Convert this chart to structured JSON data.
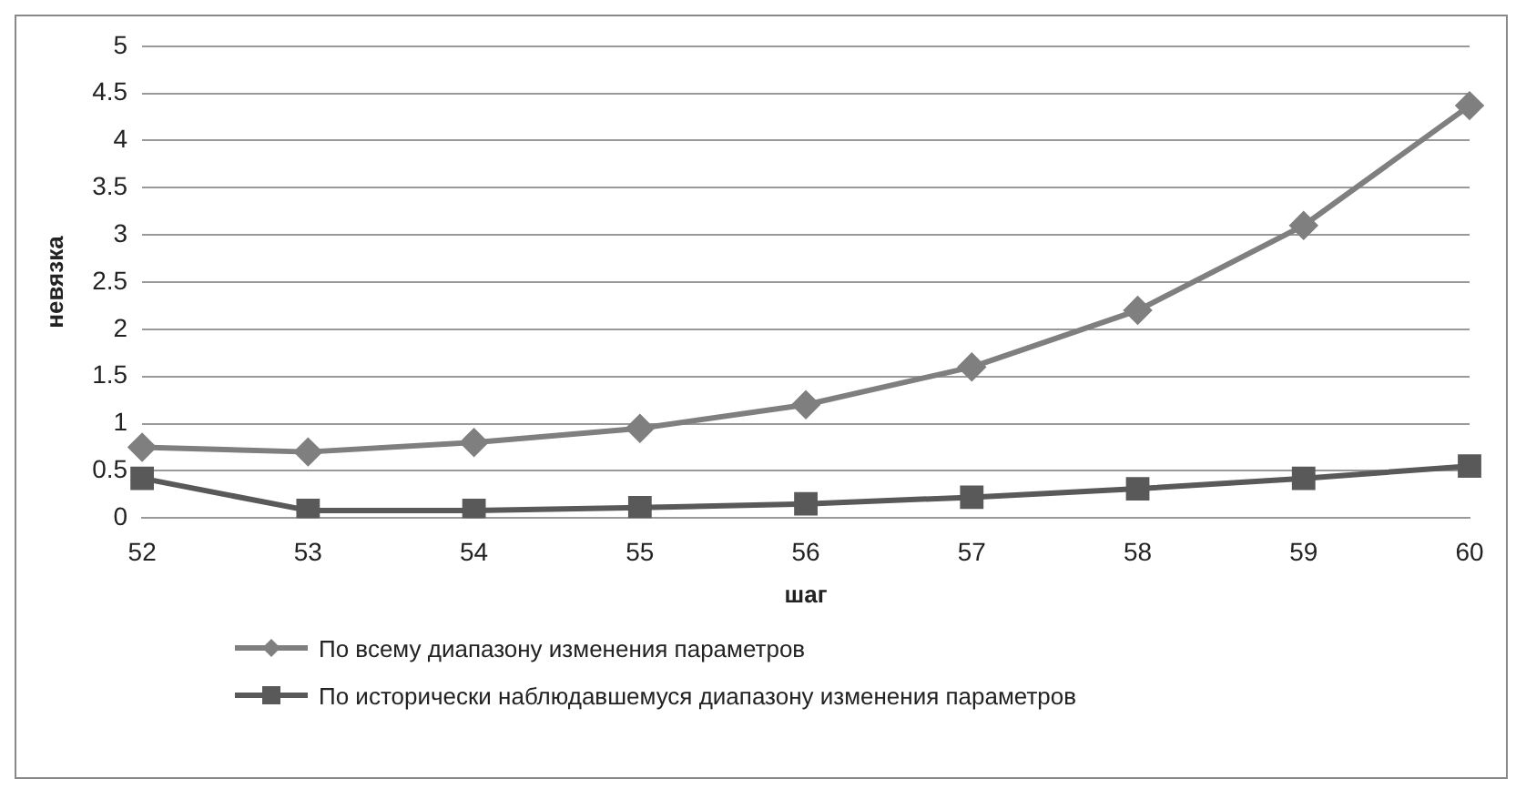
{
  "chart_data": {
    "type": "line",
    "xlabel": "шаг",
    "ylabel": "невязка",
    "categories": [
      "52",
      "53",
      "54",
      "55",
      "56",
      "57",
      "58",
      "59",
      "60"
    ],
    "series": [
      {
        "name": "По всему диапазону изменения параметров",
        "color": "#7f7f7f",
        "marker": "diamond",
        "values": [
          0.75,
          0.7,
          0.8,
          0.95,
          1.2,
          1.6,
          2.2,
          3.1,
          4.37
        ]
      },
      {
        "name": "По исторически наблюдавшемуся диапазону изменения параметров",
        "color": "#595959",
        "marker": "square",
        "values": [
          0.42,
          0.08,
          0.08,
          0.11,
          0.15,
          0.22,
          0.31,
          0.42,
          0.55
        ]
      }
    ],
    "ylim": [
      0,
      5
    ],
    "yticks": [
      0,
      0.5,
      1,
      1.5,
      2,
      2.5,
      3,
      3.5,
      4,
      4.5,
      5
    ],
    "grid": "y",
    "legend": "bottom"
  }
}
